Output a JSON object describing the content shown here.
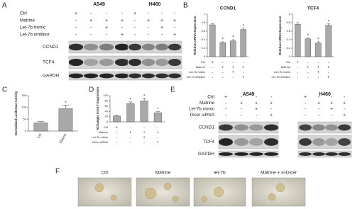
{
  "panel_labels": [
    "A",
    "B",
    "C",
    "D",
    "E",
    "F"
  ],
  "blots": [
    {
      "cell_lines": [
        "A549",
        "H460"
      ],
      "conditions": [
        {
          "name": "Ctrl",
          "signs": [
            "+",
            "-",
            "-",
            "-",
            "+",
            "-",
            "-",
            "-"
          ]
        },
        {
          "name": "Matrine",
          "signs": [
            "-",
            "+",
            "+",
            "+",
            "-",
            "+",
            "+",
            "+"
          ]
        },
        {
          "name": "Let-7b mimic",
          "signs": [
            "-",
            "-",
            "+",
            "-",
            "-",
            "-",
            "+",
            "-"
          ]
        },
        {
          "name": "Let-7b inhibitor",
          "signs": [
            "-",
            "-",
            "-",
            "+",
            "-",
            "-",
            "-",
            "+"
          ]
        }
      ],
      "proteins": [
        "CCND1",
        "TCF4",
        "GAPDH"
      ]
    },
    {
      "cell_lines": [
        "A549",
        "H460"
      ],
      "conditions": [
        {
          "name": "Ctrl",
          "signs": [
            "+",
            "-",
            "-",
            "-",
            "+",
            "-",
            "-",
            "-"
          ]
        },
        {
          "name": "Matrine",
          "signs": [
            "-",
            "+",
            "+",
            "+",
            "-",
            "+",
            "+",
            "+"
          ]
        },
        {
          "name": "Let-7b mimic",
          "signs": [
            "-",
            "-",
            "+",
            "-",
            "-",
            "-",
            "+",
            "-"
          ]
        },
        {
          "name": "Dicer siRNA",
          "signs": [
            "-",
            "-",
            "-",
            "+",
            "-",
            "-",
            "-",
            "+"
          ]
        }
      ],
      "proteins": [
        "CCND1",
        "TCF4",
        "GAPDH"
      ]
    }
  ],
  "chart_data": [
    {
      "type": "bar",
      "title": "CCND1",
      "y_label": "Relative mRNA Expression",
      "color": "#a9a9a9",
      "values": [
        0.75,
        0.33,
        0.37,
        0.64
      ],
      "errors": [
        0.03,
        0.02,
        0.03,
        0.03
      ],
      "markers": [
        null,
        "*",
        "*",
        "*"
      ],
      "ylim": [
        0,
        1
      ],
      "yticks": [
        0,
        0.2,
        0.4,
        0.6,
        0.8,
        1
      ],
      "conditions": [
        {
          "name": "Ctrl",
          "signs": [
            "+",
            "-",
            "-",
            "-"
          ]
        },
        {
          "name": "Matrine",
          "signs": [
            "-",
            "+",
            "+",
            "+"
          ]
        },
        {
          "name": "Let-7b mimic",
          "signs": [
            "-",
            "-",
            "+",
            "-"
          ]
        },
        {
          "name": "Let-7b inhibitor",
          "signs": [
            "-",
            "-",
            "-",
            "+"
          ]
        }
      ]
    },
    {
      "type": "bar",
      "title": "TCF4",
      "y_label": "Relative mRNA Expression",
      "color": "#a9a9a9",
      "values": [
        0.76,
        0.42,
        0.32,
        0.74
      ],
      "errors": [
        0.04,
        0.02,
        0.03,
        0.03
      ],
      "markers": [
        null,
        "*",
        "*",
        "*"
      ],
      "ylim": [
        0,
        1
      ],
      "yticks": [
        0,
        0.2,
        0.4,
        0.6,
        0.8,
        1
      ],
      "conditions": [
        {
          "name": "Ctrl",
          "signs": [
            "+",
            "-",
            "-",
            "-"
          ]
        },
        {
          "name": "Matrine",
          "signs": [
            "-",
            "+",
            "+",
            "+"
          ]
        },
        {
          "name": "Let-7b mimic",
          "signs": [
            "-",
            "-",
            "+",
            "-"
          ]
        },
        {
          "name": "Let-7b inhibitor",
          "signs": [
            "-",
            "-",
            "-",
            "+"
          ]
        }
      ]
    },
    {
      "type": "bar",
      "y_label": "Normalized Luciferase Activity",
      "color": "#a9a9a9",
      "categories": [
        "Ctrl",
        "Matrine"
      ],
      "values": [
        35,
        95
      ],
      "errors": [
        5,
        15
      ],
      "markers": [
        null,
        "*"
      ],
      "ylim": [
        0,
        150
      ],
      "yticks": [
        0,
        50,
        100,
        150
      ]
    },
    {
      "type": "bar",
      "y_label": "%Changes in let-7 Expression",
      "color": "#a9a9a9",
      "values": [
        22,
        70,
        80,
        35
      ],
      "errors": [
        3,
        6,
        10,
        4
      ],
      "markers": [
        null,
        "*",
        "*",
        "*"
      ],
      "ylim": [
        0,
        100
      ],
      "yticks": [
        0,
        20,
        40,
        60,
        80,
        100
      ],
      "conditions": [
        {
          "name": "Ctrl",
          "signs": [
            "+",
            "-",
            "-",
            "-"
          ]
        },
        {
          "name": "Matrine",
          "signs": [
            "-",
            "+",
            "+",
            "+"
          ]
        },
        {
          "name": "Let-7b mimic",
          "signs": [
            "-",
            "-",
            "+",
            "-"
          ]
        },
        {
          "name": "Dicer siRNA",
          "signs": [
            "-",
            "-",
            "-",
            "+"
          ]
        }
      ]
    }
  ],
  "images": {
    "labels": [
      "Ctrl",
      "Matrine",
      "let-7b",
      "Matrine + si-Dicer"
    ]
  }
}
